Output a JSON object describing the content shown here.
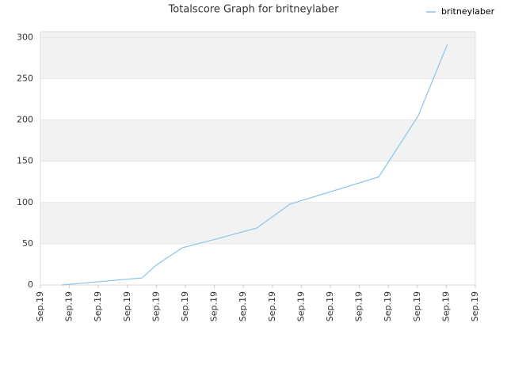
{
  "chart_data": {
    "type": "line",
    "title": "Totalscore Graph for britneylaber",
    "x": [
      0.74,
      2.02,
      2.98,
      3.5,
      3.99,
      4.89,
      5.98,
      7.46,
      8.61,
      11.67,
      13.03,
      14.04
    ],
    "series": [
      {
        "name": "britneylaber",
        "color": "#88c4f0",
        "values": [
          0,
          4,
          7,
          8.5,
          24,
          45,
          55,
          69,
          98,
          131,
          205,
          292
        ]
      }
    ],
    "xlim": [
      0,
      15
    ],
    "xticks": [
      {
        "value": 0,
        "label": "Sep.19"
      },
      {
        "value": 1,
        "label": "Sep.19"
      },
      {
        "value": 2,
        "label": "Sep.19"
      },
      {
        "value": 3,
        "label": "Sep.19"
      },
      {
        "value": 4,
        "label": "Sep.19"
      },
      {
        "value": 5,
        "label": "Sep.19"
      },
      {
        "value": 6,
        "label": "Sep.19"
      },
      {
        "value": 7,
        "label": "Sep.19"
      },
      {
        "value": 8,
        "label": "Sep.19"
      },
      {
        "value": 9,
        "label": "Sep.19"
      },
      {
        "value": 10,
        "label": "Sep.19"
      },
      {
        "value": 11,
        "label": "Sep.19"
      },
      {
        "value": 12,
        "label": "Sep.19"
      },
      {
        "value": 13,
        "label": "Sep.19"
      },
      {
        "value": 14,
        "label": "Sep.19"
      },
      {
        "value": 15,
        "label": "Sep.19"
      }
    ],
    "ylim": [
      0,
      307
    ],
    "yticks": [
      0,
      50,
      100,
      150,
      200,
      250,
      300
    ],
    "grid": true,
    "legend": "top-right"
  }
}
